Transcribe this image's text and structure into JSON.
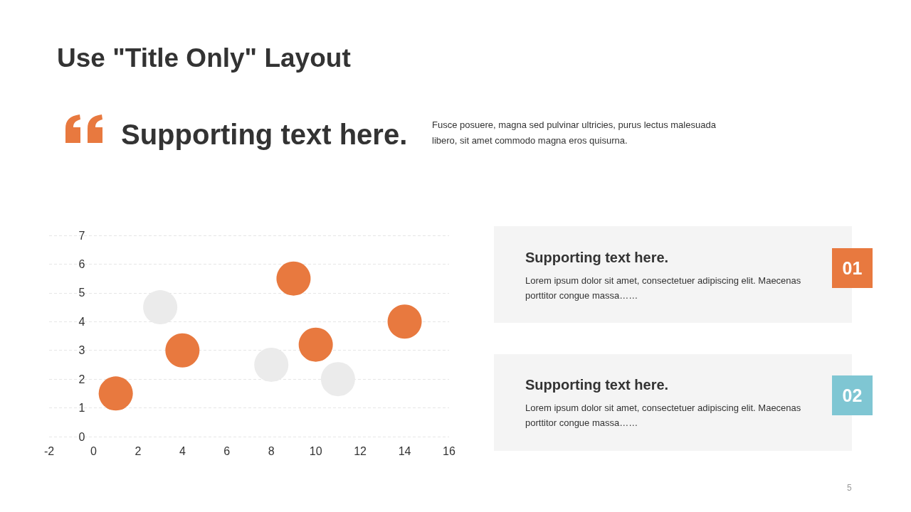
{
  "chart_data": {
    "type": "scatter",
    "title": "Use \"Title Only\" Layout",
    "subtitle": "Supporting text here.",
    "annotations": [
      "Fusce posuere, magna sed pulvinar ultricies, purus lectus malesuada libero, sit amet commodo magna eros quisurna.",
      "Supporting text here.",
      "Lorem ipsum dolor sit amet, consectetuer adipiscing elit. Maecenas porttitor congue massa……",
      "01",
      "Supporting text here.",
      "Lorem ipsum dolor sit amet, consectetuer adipiscing elit. Maecenas porttitor congue massa……",
      "02",
      "5"
    ],
    "series": [
      {
        "color": "#ebebeb",
        "x": [
          3,
          8,
          11
        ],
        "values": [
          4.5,
          2.5,
          2
        ]
      },
      {
        "color": "#e8793f",
        "x": [
          1,
          4,
          9,
          10,
          14
        ],
        "values": [
          1.5,
          3,
          5.5,
          3.2,
          4
        ]
      }
    ],
    "xlim": [
      -2,
      16
    ],
    "xticks": [
      -2,
      0,
      2,
      4,
      6,
      8,
      10,
      12,
      14,
      16
    ],
    "ylim": [
      0,
      7
    ],
    "yticks": [
      0,
      1,
      2,
      3,
      4,
      5,
      6,
      7
    ],
    "grid": "y",
    "marker": "circle"
  }
}
